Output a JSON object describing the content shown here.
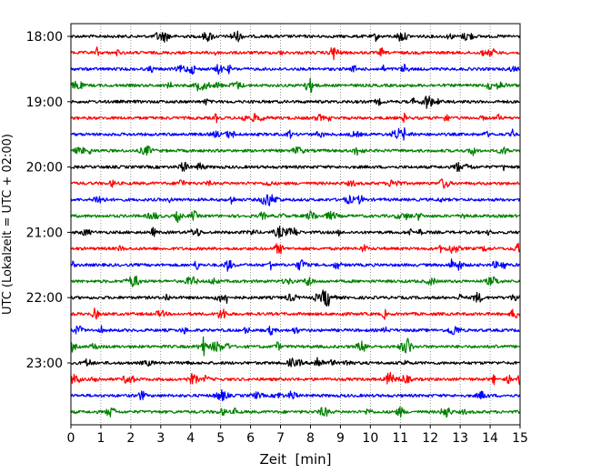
{
  "chart_data": {
    "type": "line",
    "title": "",
    "xlabel": "Zeit  [min]",
    "ylabel": "UTC (Lokalzeit = UTC + 02:00)",
    "xlim": [
      0,
      15
    ],
    "x_ticks": [
      0,
      1,
      2,
      3,
      4,
      5,
      6,
      7,
      8,
      9,
      10,
      11,
      12,
      13,
      14,
      15
    ],
    "x_tick_labels": [
      "0",
      "1",
      "2",
      "3",
      "4",
      "5",
      "6",
      "7",
      "8",
      "9",
      "10",
      "11",
      "12",
      "13",
      "14",
      "15"
    ],
    "y_tick_labels": [
      "18:00",
      "19:00",
      "20:00",
      "21:00",
      "22:00",
      "23:00"
    ],
    "y_tick_rows": [
      0,
      4,
      8,
      12,
      16,
      20
    ],
    "grid": {
      "x": true,
      "y": false,
      "style": "dotted"
    },
    "trace_colors": [
      "#000000",
      "#ff0000",
      "#0000ff",
      "#008000"
    ],
    "traces": [
      {
        "start": "18:00",
        "color": "#000000"
      },
      {
        "start": "18:15",
        "color": "#ff0000"
      },
      {
        "start": "18:30",
        "color": "#0000ff"
      },
      {
        "start": "18:45",
        "color": "#008000"
      },
      {
        "start": "19:00",
        "color": "#000000"
      },
      {
        "start": "19:15",
        "color": "#ff0000"
      },
      {
        "start": "19:30",
        "color": "#0000ff"
      },
      {
        "start": "19:45",
        "color": "#008000"
      },
      {
        "start": "20:00",
        "color": "#000000"
      },
      {
        "start": "20:15",
        "color": "#ff0000"
      },
      {
        "start": "20:30",
        "color": "#0000ff"
      },
      {
        "start": "20:45",
        "color": "#008000"
      },
      {
        "start": "21:00",
        "color": "#000000"
      },
      {
        "start": "21:15",
        "color": "#ff0000"
      },
      {
        "start": "21:30",
        "color": "#0000ff"
      },
      {
        "start": "21:45",
        "color": "#008000"
      },
      {
        "start": "22:00",
        "color": "#000000"
      },
      {
        "start": "22:15",
        "color": "#ff0000"
      },
      {
        "start": "22:30",
        "color": "#0000ff"
      },
      {
        "start": "22:45",
        "color": "#008000"
      },
      {
        "start": "23:00",
        "color": "#000000"
      },
      {
        "start": "23:15",
        "color": "#ff0000"
      },
      {
        "start": "23:30",
        "color": "#0000ff"
      },
      {
        "start": "23:45",
        "color": "#008000"
      }
    ]
  }
}
